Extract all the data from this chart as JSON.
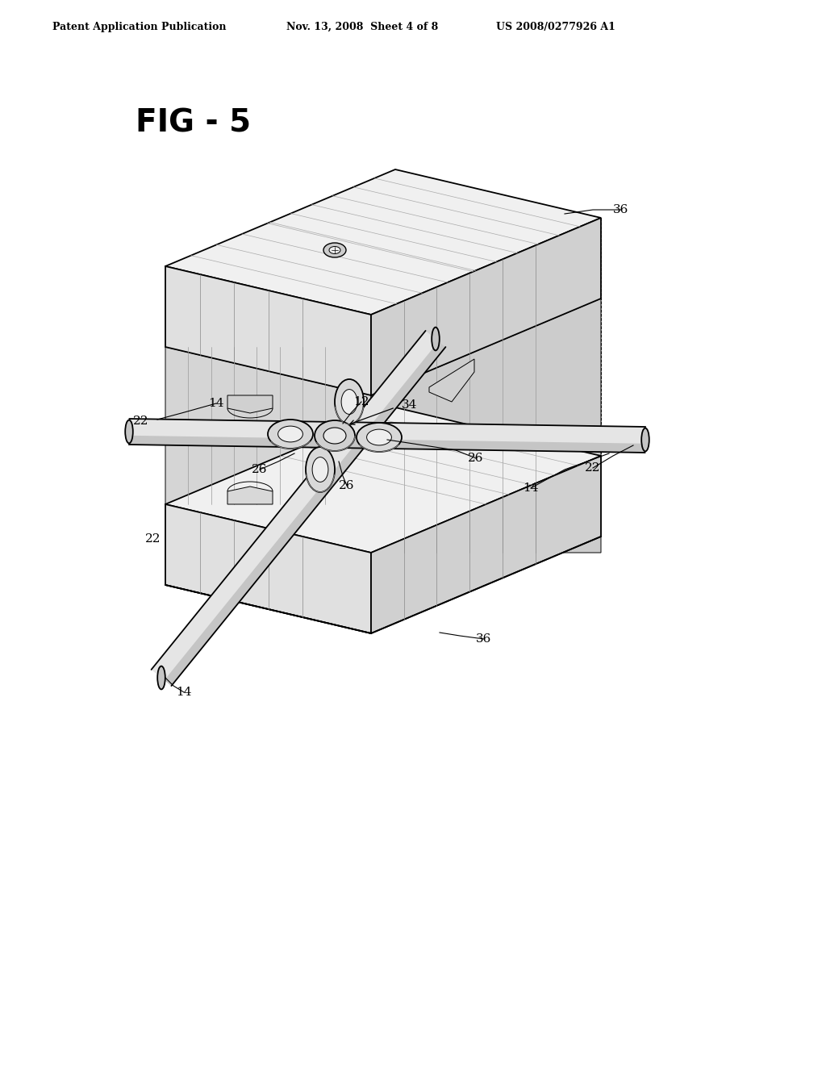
{
  "header_left": "Patent Application Publication",
  "header_mid": "Nov. 13, 2008  Sheet 4 of 8",
  "header_right": "US 2008/0277926 A1",
  "fig_label": "FIG - 5",
  "bg": "#ffffff",
  "lc": "#000000",
  "face_top_color": "#f0f0f0",
  "face_left_color": "#e0e0e0",
  "face_right_color": "#d0d0d0",
  "face_inner_color": "#c8c8c8",
  "hatch_c": "#aaaaaa",
  "tube_body": "#e8e8e8",
  "tube_shade": "#c8c8c8",
  "tube_dark": "#b0b0b0"
}
